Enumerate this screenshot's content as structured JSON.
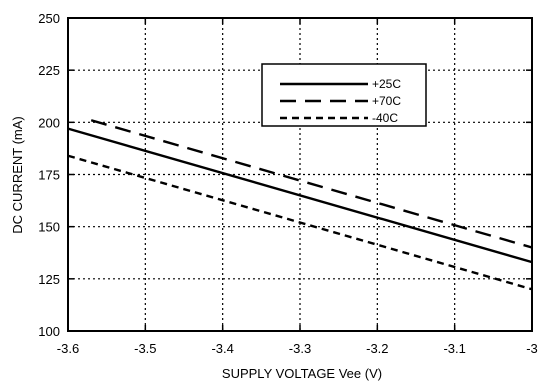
{
  "chart_data": {
    "type": "line",
    "title": "",
    "xlabel": "SUPPLY VOLTAGE Vee (V)",
    "ylabel": "DC CURRENT (mA)",
    "xlim": [
      -3.6,
      -3.0
    ],
    "ylim": [
      100,
      250
    ],
    "x_ticks": [
      -3.6,
      -3.5,
      -3.4,
      -3.3,
      -3.2,
      -3.1,
      -3.0
    ],
    "x_tick_labels": [
      "-3.6",
      "-3.5",
      "-3.4",
      "-3.3",
      "-3.2",
      "-3.1",
      "-3"
    ],
    "y_ticks": [
      100,
      125,
      150,
      175,
      200,
      225,
      250
    ],
    "y_tick_labels": [
      "100",
      "125",
      "150",
      "175",
      "200",
      "225",
      "250"
    ],
    "grid": true,
    "legend_position": "top-right",
    "series": [
      {
        "name": "+25C",
        "dash": "solid",
        "x": [
          -3.6,
          -3.0
        ],
        "y": [
          197,
          133
        ]
      },
      {
        "name": "+70C",
        "dash": "long-dash",
        "x": [
          -3.57,
          -3.0
        ],
        "y": [
          201,
          140
        ]
      },
      {
        "name": "-40C",
        "dash": "short-dash",
        "x": [
          -3.6,
          -3.0
        ],
        "y": [
          184,
          120
        ]
      }
    ]
  }
}
